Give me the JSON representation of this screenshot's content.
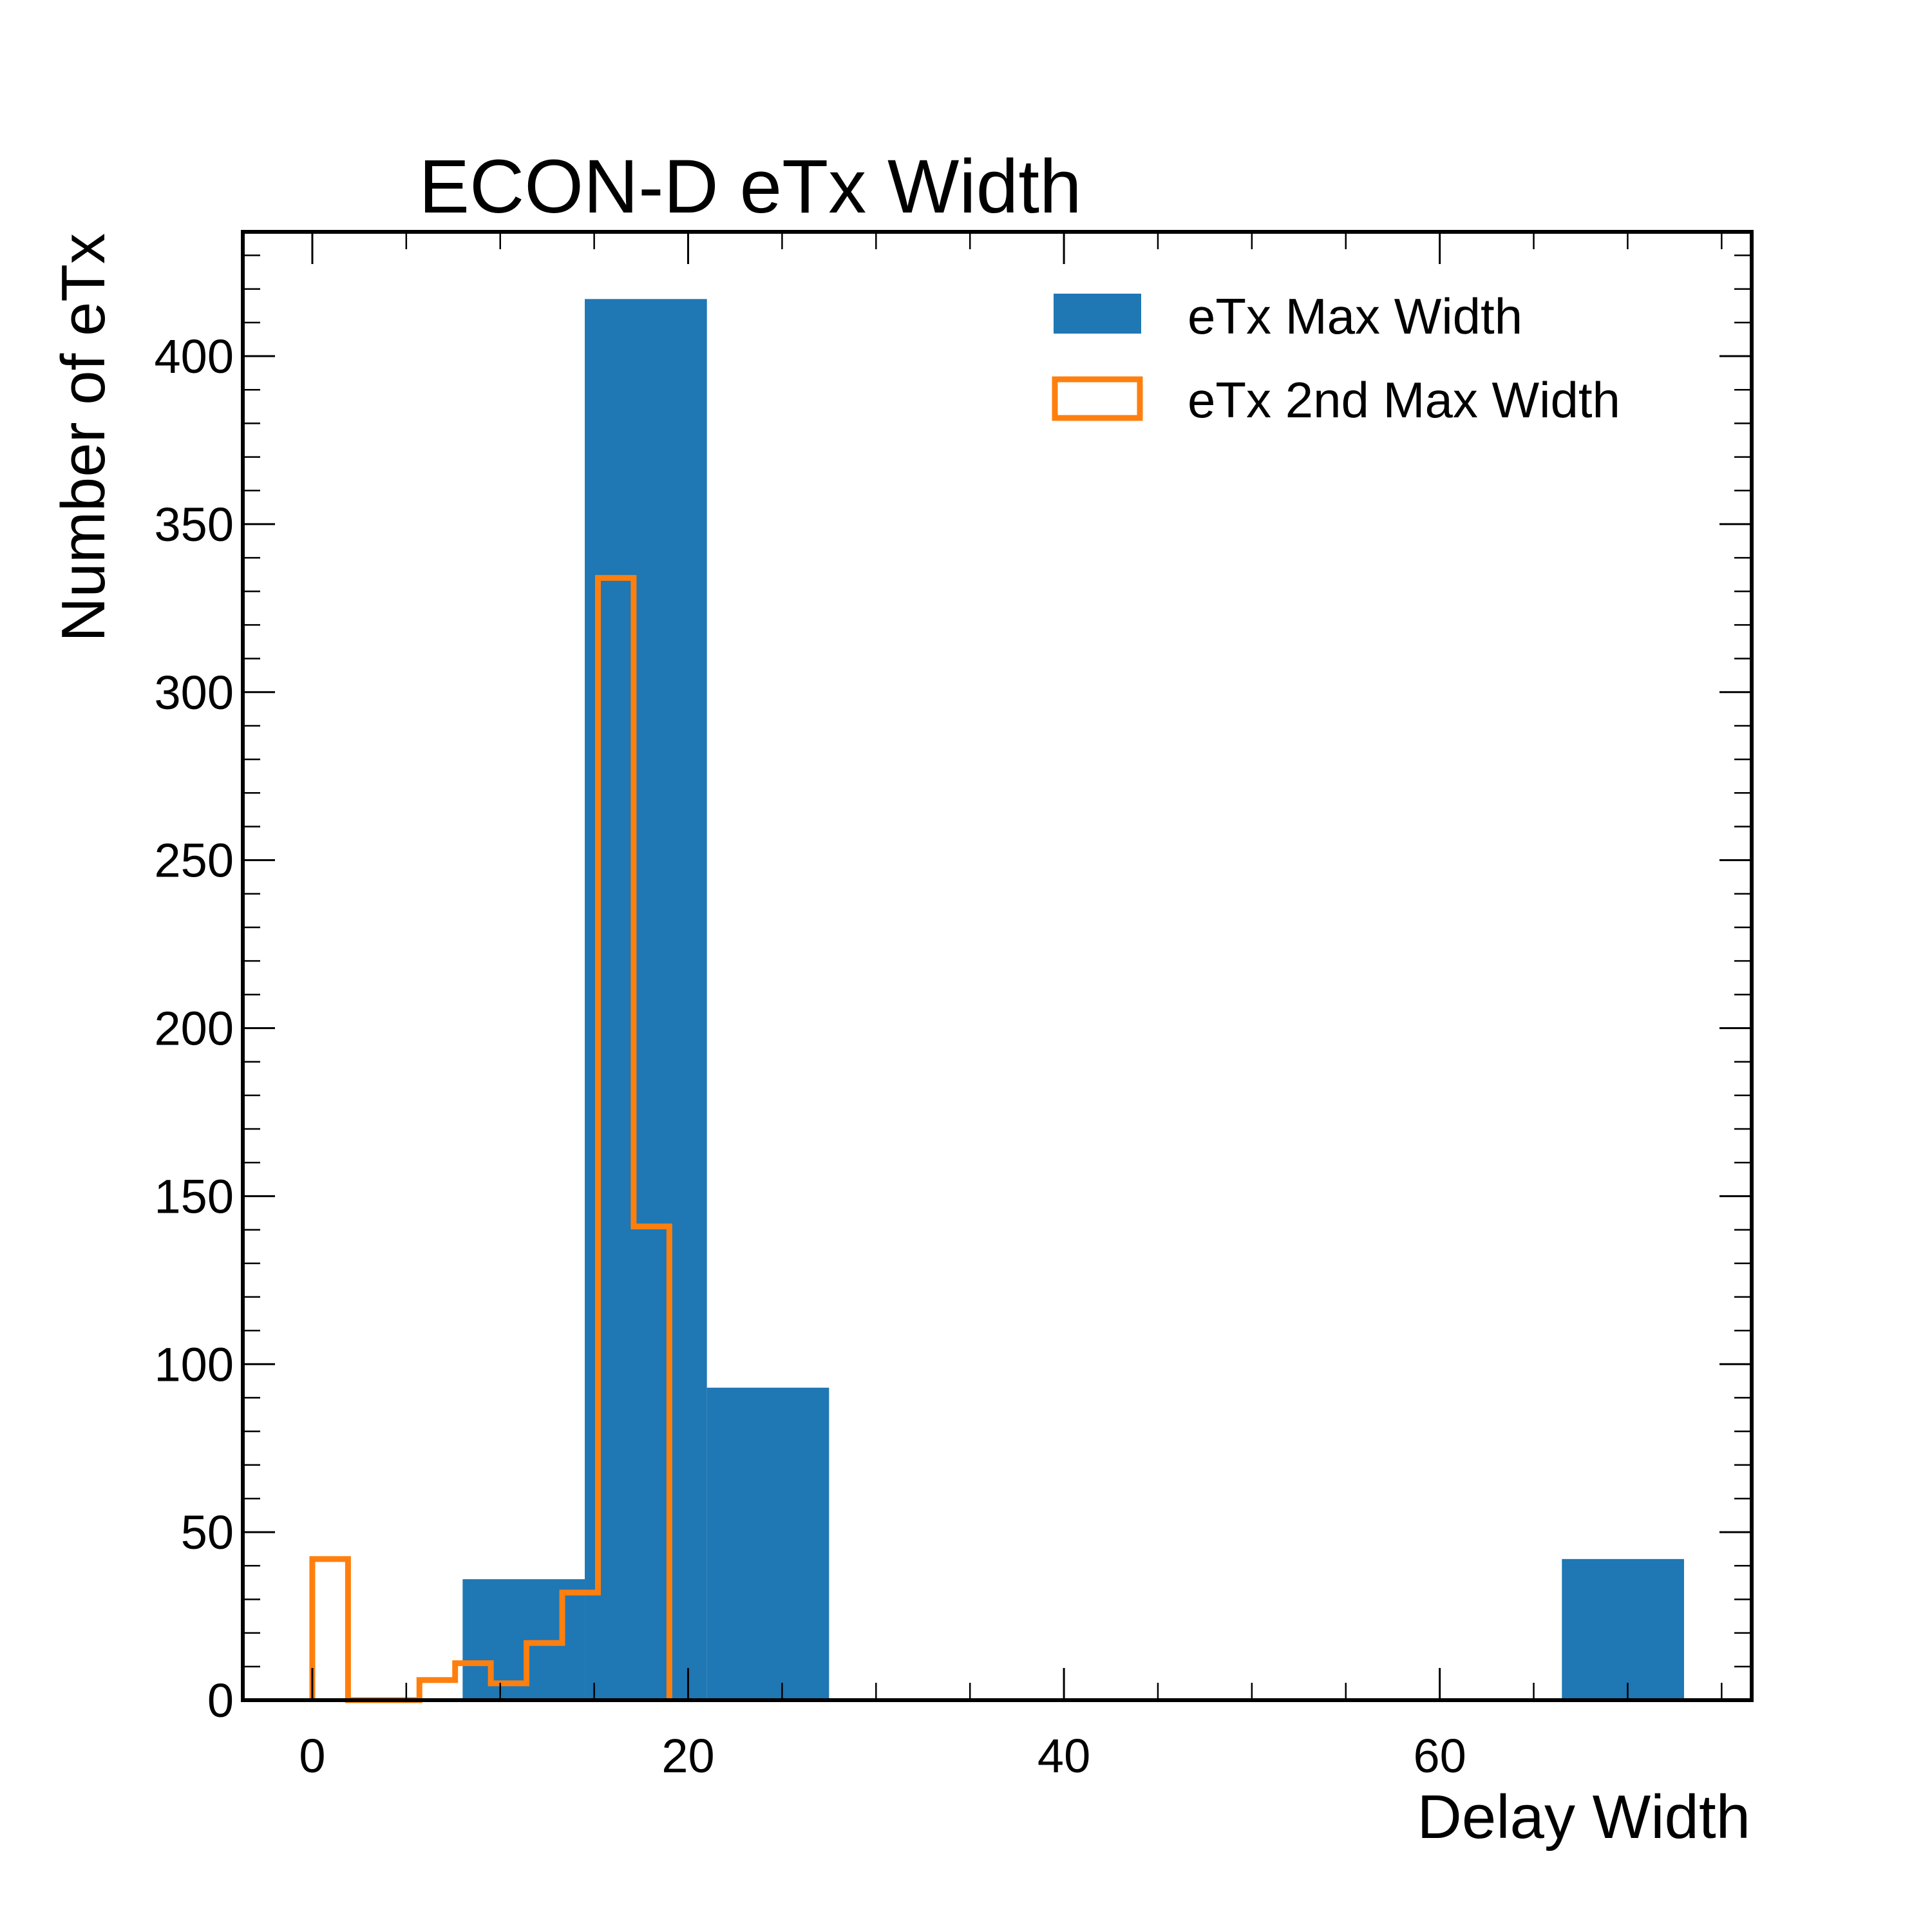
{
  "chart_data": {
    "type": "histogram",
    "title": "ECON-D eTx Width",
    "xlabel": "Delay Width",
    "ylabel": "Number of eTx",
    "xlim": [
      -3.7,
      76.6
    ],
    "ylim": [
      0,
      437
    ],
    "x_major_ticks": [
      0,
      20,
      40,
      60
    ],
    "x_minor_step": 5,
    "y_major_ticks": [
      0,
      50,
      100,
      150,
      200,
      250,
      300,
      350,
      400
    ],
    "y_minor_step": 10,
    "legend_position": "top-right",
    "series": [
      {
        "name": "eTx Max Width",
        "style": "filled",
        "color": "#1f77b4",
        "bins": [
          {
            "x0": 8.0,
            "x1": 14.5,
            "value": 36
          },
          {
            "x0": 14.5,
            "x1": 21.0,
            "value": 417
          },
          {
            "x0": 21.0,
            "x1": 27.5,
            "value": 93
          },
          {
            "x0": 66.5,
            "x1": 73.0,
            "value": 42
          }
        ]
      },
      {
        "name": "eTx 2nd Max Width",
        "style": "step",
        "color": "#ff7f0e",
        "edges": [
          0.0,
          1.9,
          3.8,
          5.7,
          7.6,
          9.5,
          11.4,
          13.3,
          15.2,
          17.1,
          19.0
        ],
        "values": [
          42,
          0,
          0,
          6,
          11,
          5,
          17,
          32,
          334,
          141
        ]
      }
    ]
  }
}
